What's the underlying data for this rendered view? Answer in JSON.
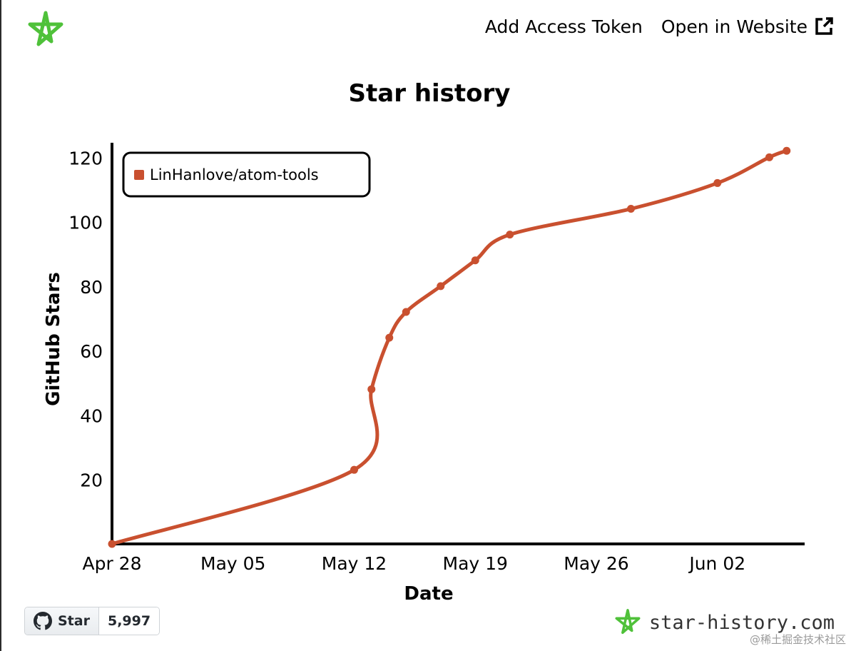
{
  "header": {
    "add_token_label": "Add Access Token",
    "open_website_label": "Open in Website"
  },
  "footer": {
    "star_label": "Star",
    "star_count": "5,997",
    "brand_text": "star-history.com",
    "watermark": "@稀土掘金技术社区"
  },
  "colors": {
    "series": "#c9502f",
    "brand_green": "#4fc13a"
  },
  "chart_data": {
    "type": "line",
    "title": "Star history",
    "xlabel": "Date",
    "ylabel": "GitHub Stars",
    "xlim": [
      "2024-04-28",
      "2024-06-07"
    ],
    "ylim": [
      0,
      120
    ],
    "x_ticks": [
      "Apr 28",
      "May 05",
      "May 12",
      "May 19",
      "May 26",
      "Jun 02"
    ],
    "x_tick_dates": [
      "2024-04-28",
      "2024-05-05",
      "2024-05-12",
      "2024-05-19",
      "2024-05-26",
      "2024-06-02"
    ],
    "y_ticks": [
      20,
      40,
      60,
      80,
      100,
      120
    ],
    "legend_position": "top-left",
    "grid": false,
    "series": [
      {
        "name": "LinHanlove/atom-tools",
        "color": "#c9502f",
        "points": [
          {
            "x": "2024-04-28",
            "y": 0
          },
          {
            "x": "2024-05-12",
            "y": 23
          },
          {
            "x": "2024-05-13",
            "y": 48
          },
          {
            "x": "2024-05-13",
            "y": 64
          },
          {
            "x": "2024-05-15",
            "y": 72
          },
          {
            "x": "2024-05-17",
            "y": 80
          },
          {
            "x": "2024-05-19",
            "y": 88
          },
          {
            "x": "2024-05-21",
            "y": 96
          },
          {
            "x": "2024-05-28",
            "y": 104
          },
          {
            "x": "2024-06-02",
            "y": 112
          },
          {
            "x": "2024-06-05",
            "y": 120
          },
          {
            "x": "2024-06-06",
            "y": 122
          }
        ]
      }
    ]
  }
}
